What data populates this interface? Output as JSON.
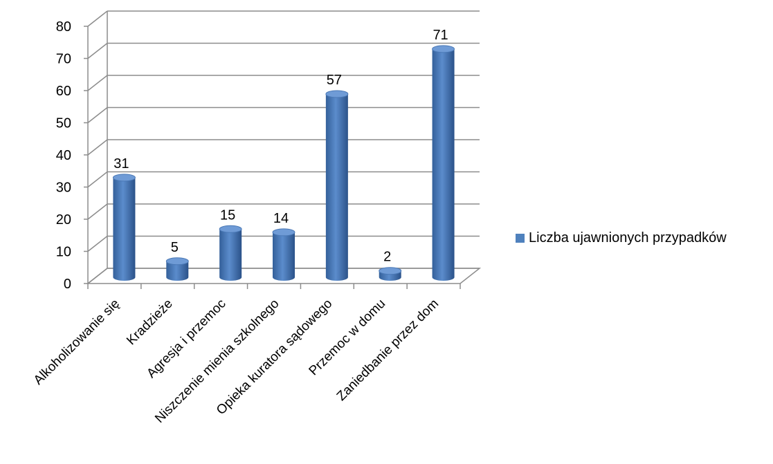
{
  "chart_data": {
    "type": "bar",
    "categories": [
      "Alkoholizowanie się",
      "Kradzieże",
      "Agresja i przemoc",
      "Niszczenie mienia szkolnego",
      "Opieka kuratora sądowego",
      "Przemoc w domu",
      "Zaniedbanie przez dom"
    ],
    "series": [
      {
        "name": "Liczba ujawnionych przypadków",
        "values": [
          31,
          5,
          15,
          14,
          57,
          2,
          71
        ]
      }
    ],
    "yticks": [
      "0",
      "10",
      "20",
      "30",
      "40",
      "50",
      "60",
      "70",
      "80"
    ],
    "ylim": [
      0,
      80
    ],
    "grid": true,
    "legend": "right",
    "bar_shape": "cylinder",
    "colors": {
      "bar": "#4f81bd",
      "bar_dark": "#2b5289",
      "grid": "#8c8c8c"
    }
  }
}
